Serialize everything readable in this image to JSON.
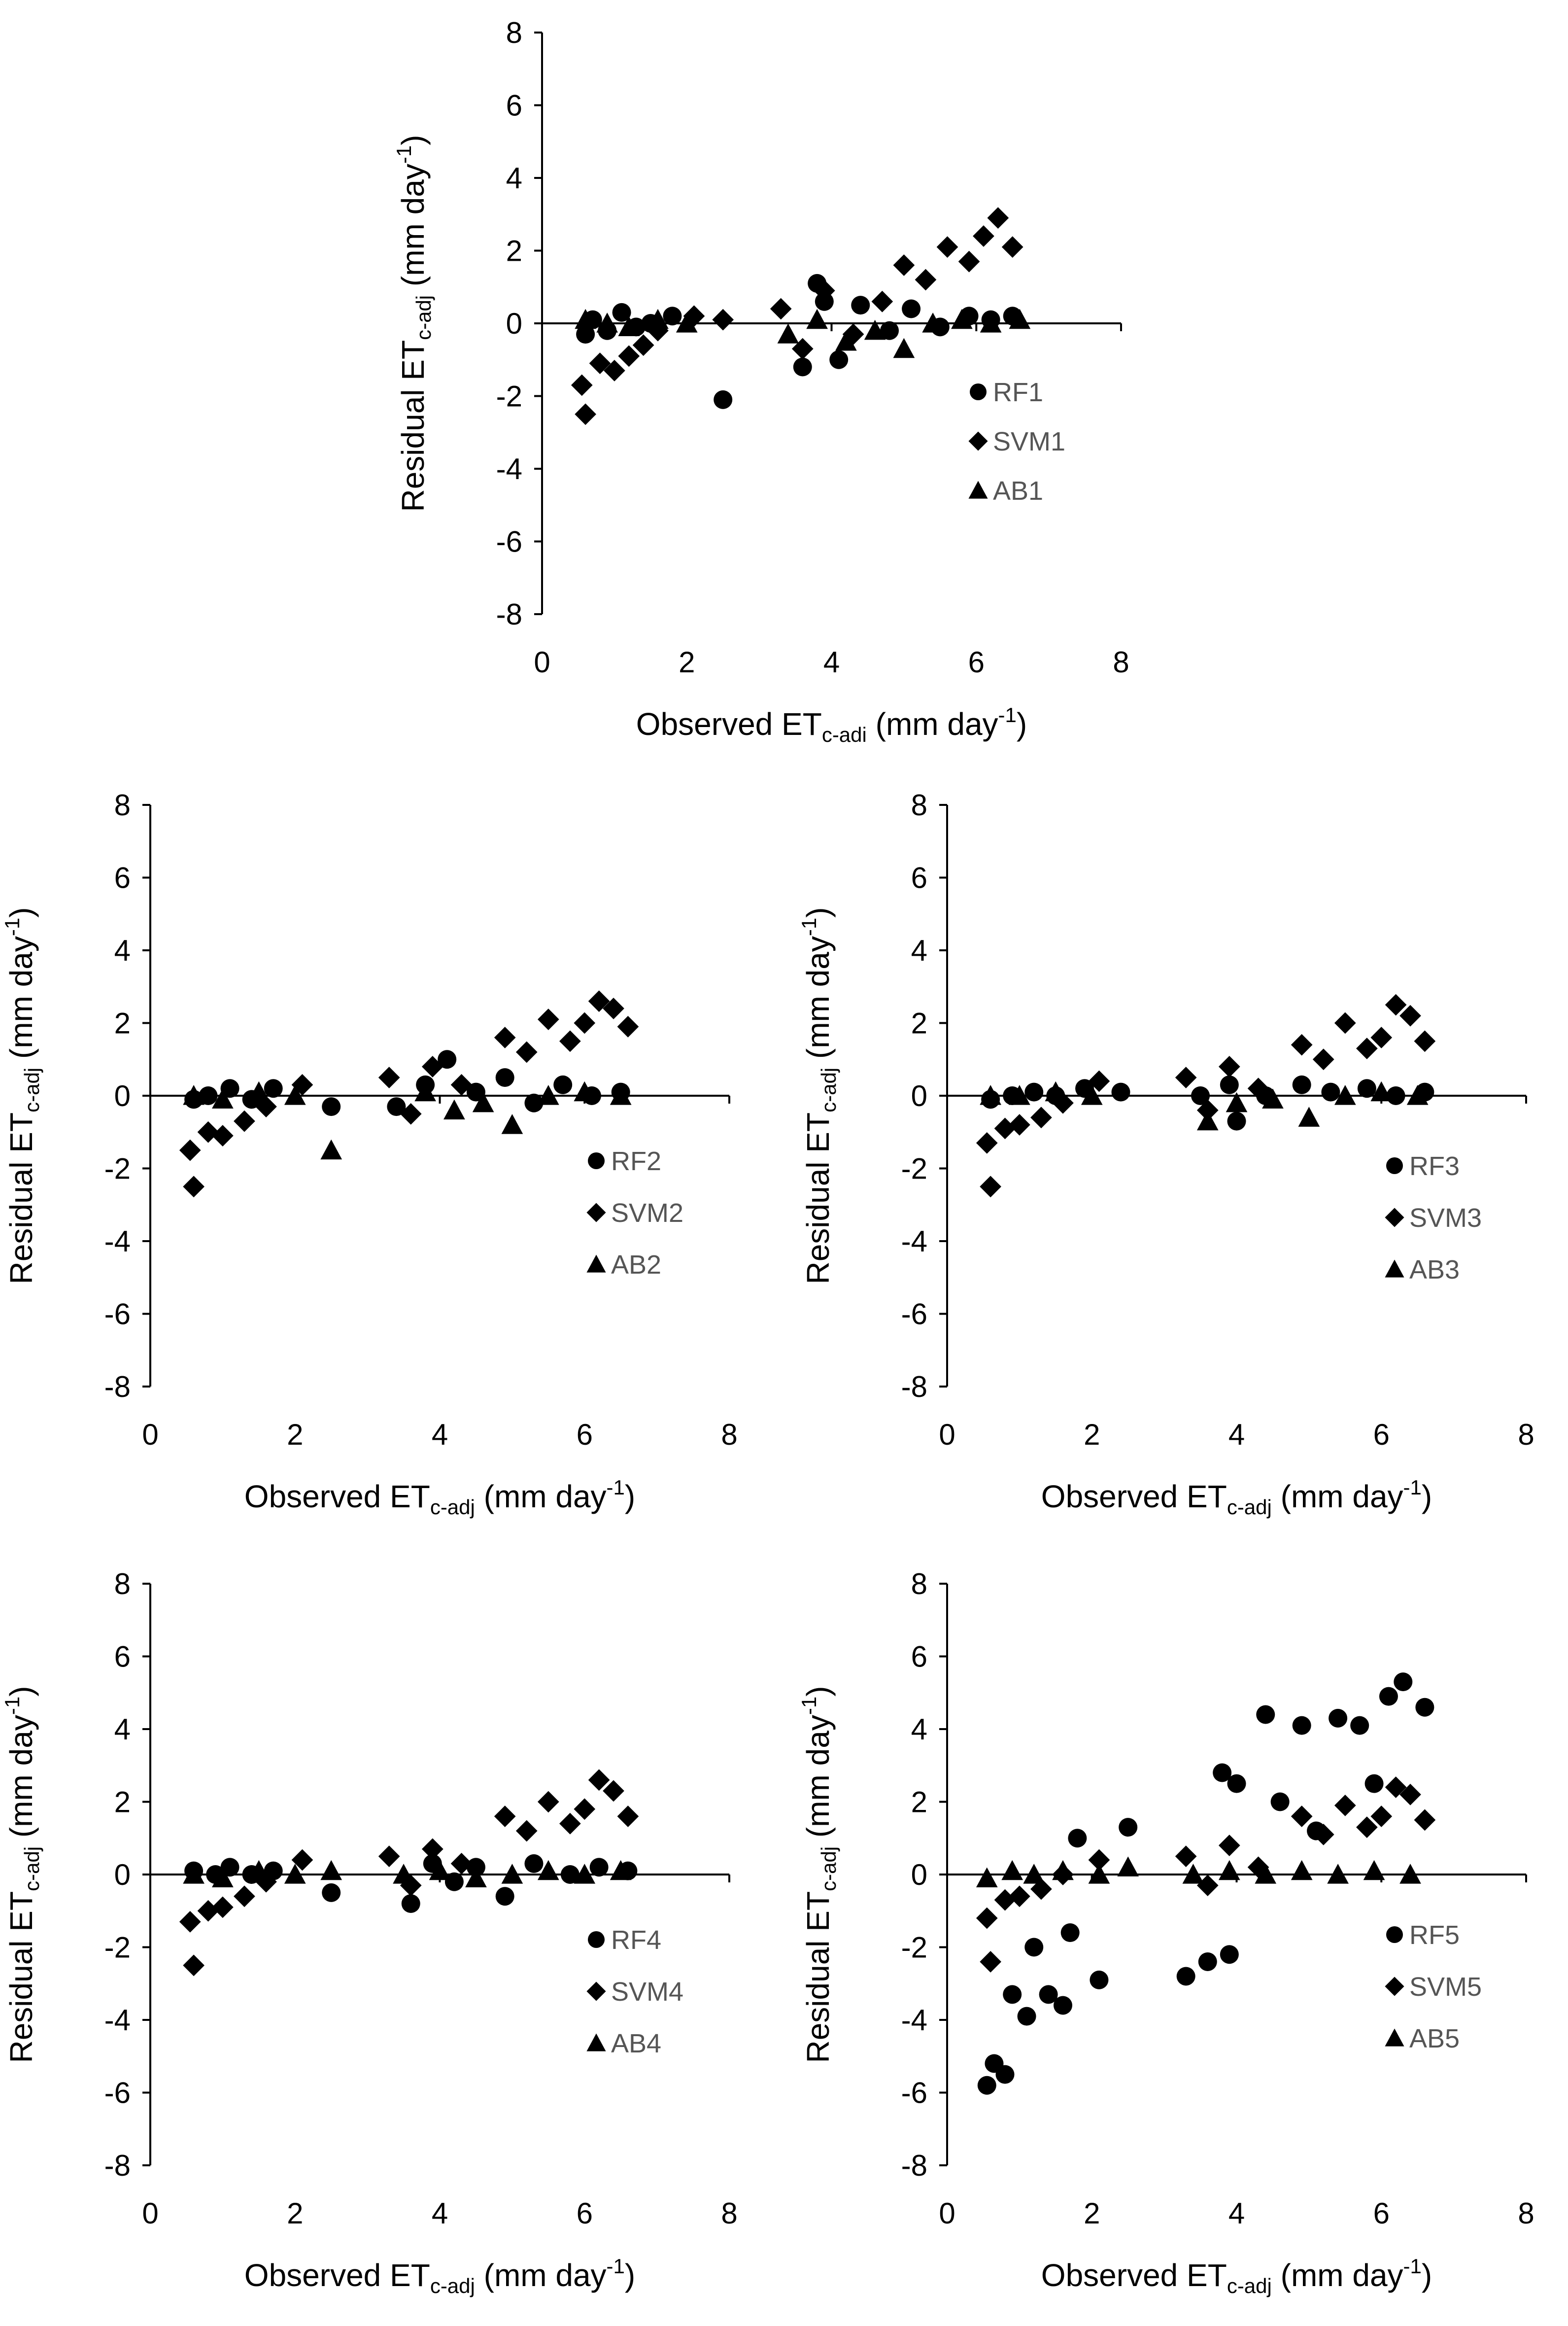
{
  "chart_data": [
    {
      "type": "scatter",
      "panel": "1",
      "title": "",
      "xlabel": {
        "prefix": "Observed ET",
        "sub": "c-adi",
        "suffix": " (mm day",
        "sup": "-1",
        "end": ")"
      },
      "ylabel": {
        "prefix": "Residual ET",
        "sub": "c-adj",
        "suffix": " (mm day",
        "sup": "-1",
        "end": ")"
      },
      "xlim": [
        0,
        8
      ],
      "ylim": [
        -8,
        8
      ],
      "xticks": [
        "0",
        "2",
        "4",
        "6",
        "8"
      ],
      "yticks": [
        "8",
        "6",
        "4",
        "2",
        "0",
        "-2",
        "-4",
        "-6",
        "-8"
      ],
      "legend": {
        "placement": "lower-right",
        "entries": [
          "RF1",
          "SVM1",
          "AB1"
        ]
      },
      "series": [
        {
          "name": "RF1",
          "marker": "circle",
          "x": [
            0.6,
            0.7,
            0.9,
            1.1,
            1.3,
            1.5,
            1.8,
            2.5,
            3.6,
            3.8,
            3.9,
            4.1,
            4.4,
            4.8,
            5.1,
            5.5,
            5.9,
            6.2,
            6.5
          ],
          "y": [
            -0.3,
            0.1,
            -0.2,
            0.3,
            -0.1,
            0.0,
            0.2,
            -2.1,
            -1.2,
            1.1,
            0.6,
            -1.0,
            0.5,
            -0.2,
            0.4,
            -0.1,
            0.2,
            0.1,
            0.2
          ]
        },
        {
          "name": "SVM1",
          "marker": "diamond",
          "x": [
            0.55,
            0.6,
            0.8,
            1.0,
            1.2,
            1.4,
            1.6,
            2.1,
            2.5,
            3.3,
            3.6,
            3.9,
            4.3,
            4.7,
            5.0,
            5.3,
            5.6,
            5.9,
            6.1,
            6.3,
            6.5
          ],
          "y": [
            -1.7,
            -2.5,
            -1.1,
            -1.3,
            -0.9,
            -0.6,
            -0.2,
            0.2,
            0.1,
            0.4,
            -0.7,
            0.9,
            -0.3,
            0.6,
            1.6,
            1.2,
            2.1,
            1.7,
            2.4,
            2.9,
            2.1
          ]
        },
        {
          "name": "AB1",
          "marker": "triangle",
          "x": [
            0.6,
            0.9,
            1.2,
            1.6,
            2.0,
            3.4,
            3.8,
            4.2,
            4.6,
            5.0,
            5.4,
            5.8,
            6.2,
            6.6
          ],
          "y": [
            0.1,
            0.0,
            -0.1,
            0.1,
            0.0,
            -0.3,
            0.1,
            -0.5,
            -0.2,
            -0.7,
            0.0,
            0.1,
            0.0,
            0.1
          ]
        }
      ]
    },
    {
      "type": "scatter",
      "panel": "2",
      "title": "",
      "xlabel": {
        "prefix": "Observed ET",
        "sub": "c-adj",
        "suffix": " (mm day",
        "sup": "-1",
        "end": ")"
      },
      "ylabel": {
        "prefix": "Residual ET",
        "sub": "c-adj",
        "suffix": " (mm day",
        "sup": "-1",
        "end": ")"
      },
      "xlim": [
        0,
        8
      ],
      "ylim": [
        -8,
        8
      ],
      "xticks": [
        "0",
        "2",
        "4",
        "6",
        "8"
      ],
      "yticks": [
        "8",
        "6",
        "4",
        "2",
        "0",
        "-2",
        "-4",
        "-6",
        "-8"
      ],
      "legend": {
        "placement": "lower-right",
        "entries": [
          "RF2",
          "SVM2",
          "AB2"
        ]
      },
      "series": [
        {
          "name": "RF2",
          "marker": "circle",
          "x": [
            0.6,
            0.8,
            1.1,
            1.4,
            1.7,
            2.5,
            3.4,
            3.8,
            4.1,
            4.5,
            4.9,
            5.3,
            5.7,
            6.1,
            6.5
          ],
          "y": [
            -0.1,
            0.0,
            0.2,
            -0.1,
            0.2,
            -0.3,
            -0.3,
            0.3,
            1.0,
            0.1,
            0.5,
            -0.2,
            0.3,
            0.0,
            0.1
          ]
        },
        {
          "name": "SVM2",
          "marker": "diamond",
          "x": [
            0.55,
            0.6,
            0.8,
            1.0,
            1.3,
            1.6,
            2.1,
            3.3,
            3.6,
            3.9,
            4.3,
            4.9,
            5.2,
            5.5,
            5.8,
            6.0,
            6.2,
            6.4,
            6.6
          ],
          "y": [
            -1.5,
            -2.5,
            -1.0,
            -1.1,
            -0.7,
            -0.3,
            0.3,
            0.5,
            -0.5,
            0.8,
            0.3,
            1.6,
            1.2,
            2.1,
            1.5,
            2.0,
            2.6,
            2.4,
            1.9
          ]
        },
        {
          "name": "AB2",
          "marker": "triangle",
          "x": [
            0.6,
            1.0,
            1.5,
            2.0,
            2.5,
            3.8,
            4.2,
            4.6,
            5.0,
            5.5,
            6.0,
            6.5
          ],
          "y": [
            0.0,
            -0.1,
            0.1,
            0.0,
            -1.5,
            0.1,
            -0.4,
            -0.2,
            -0.8,
            0.0,
            0.1,
            0.0
          ]
        }
      ]
    },
    {
      "type": "scatter",
      "panel": "3",
      "title": "",
      "xlabel": {
        "prefix": "Observed ET",
        "sub": "c-adj",
        "suffix": " (mm day",
        "sup": "-1",
        "end": ")"
      },
      "ylabel": {
        "prefix": "Residual ET",
        "sub": "c-adj",
        "suffix": " (mm day",
        "sup": "-1",
        "end": ")"
      },
      "xlim": [
        0,
        8
      ],
      "ylim": [
        -8,
        8
      ],
      "xticks": [
        "0",
        "2",
        "4",
        "6",
        "8"
      ],
      "yticks": [
        "8",
        "6",
        "4",
        "2",
        "0",
        "-2",
        "-4",
        "-6",
        "-8"
      ],
      "legend": {
        "placement": "lower-right",
        "entries": [
          "RF3",
          "SVM3",
          "AB3"
        ]
      },
      "series": [
        {
          "name": "RF3",
          "marker": "circle",
          "x": [
            0.6,
            0.9,
            1.2,
            1.5,
            1.9,
            2.4,
            3.5,
            3.9,
            4.0,
            4.4,
            4.9,
            5.3,
            5.8,
            6.2,
            6.6
          ],
          "y": [
            -0.1,
            0.0,
            0.1,
            0.0,
            0.2,
            0.1,
            0.0,
            0.3,
            -0.7,
            0.0,
            0.3,
            0.1,
            0.2,
            0.0,
            0.1
          ]
        },
        {
          "name": "SVM3",
          "marker": "diamond",
          "x": [
            0.55,
            0.6,
            0.8,
            1.0,
            1.3,
            1.6,
            2.1,
            3.3,
            3.6,
            3.9,
            4.3,
            4.9,
            5.2,
            5.5,
            5.8,
            6.0,
            6.2,
            6.4,
            6.6
          ],
          "y": [
            -1.3,
            -2.5,
            -0.9,
            -0.8,
            -0.6,
            -0.2,
            0.4,
            0.5,
            -0.4,
            0.8,
            0.2,
            1.4,
            1.0,
            2.0,
            1.3,
            1.6,
            2.5,
            2.2,
            1.5
          ]
        },
        {
          "name": "AB3",
          "marker": "triangle",
          "x": [
            0.6,
            1.0,
            1.5,
            2.0,
            3.6,
            4.0,
            4.5,
            5.0,
            5.5,
            6.0,
            6.5
          ],
          "y": [
            0.0,
            0.0,
            0.1,
            0.0,
            -0.7,
            -0.2,
            -0.1,
            -0.6,
            0.0,
            0.1,
            0.0
          ]
        }
      ]
    },
    {
      "type": "scatter",
      "panel": "4",
      "title": "",
      "xlabel": {
        "prefix": "Observed ET",
        "sub": "c-adj",
        "suffix": " (mm day",
        "sup": "-1",
        "end": ")"
      },
      "ylabel": {
        "prefix": "Residual ET",
        "sub": "c-adj",
        "suffix": " (mm day",
        "sup": "-1",
        "end": ")"
      },
      "xlim": [
        0,
        8
      ],
      "ylim": [
        -8,
        8
      ],
      "xticks": [
        "0",
        "2",
        "4",
        "6",
        "8"
      ],
      "yticks": [
        "8",
        "6",
        "4",
        "2",
        "0",
        "-2",
        "-4",
        "-6",
        "-8"
      ],
      "legend": {
        "placement": "lower-right",
        "entries": [
          "RF4",
          "SVM4",
          "AB4"
        ]
      },
      "series": [
        {
          "name": "RF4",
          "marker": "circle",
          "x": [
            0.6,
            0.9,
            1.1,
            1.4,
            1.7,
            2.5,
            3.6,
            3.9,
            4.2,
            4.5,
            4.9,
            5.3,
            5.8,
            6.2,
            6.6
          ],
          "y": [
            0.1,
            0.0,
            0.2,
            0.0,
            0.1,
            -0.5,
            -0.8,
            0.3,
            -0.2,
            0.2,
            -0.6,
            0.3,
            0.0,
            0.2,
            0.1
          ]
        },
        {
          "name": "SVM4",
          "marker": "diamond",
          "x": [
            0.55,
            0.6,
            0.8,
            1.0,
            1.3,
            1.6,
            2.1,
            3.3,
            3.6,
            3.9,
            4.3,
            4.9,
            5.2,
            5.5,
            5.8,
            6.0,
            6.2,
            6.4,
            6.6
          ],
          "y": [
            -1.3,
            -2.5,
            -1.0,
            -0.9,
            -0.6,
            -0.2,
            0.4,
            0.5,
            -0.3,
            0.7,
            0.3,
            1.6,
            1.2,
            2.0,
            1.4,
            1.8,
            2.6,
            2.3,
            1.6
          ]
        },
        {
          "name": "AB4",
          "marker": "triangle",
          "x": [
            0.6,
            1.0,
            1.5,
            2.0,
            2.5,
            3.5,
            4.0,
            4.5,
            5.0,
            5.5,
            6.0,
            6.5
          ],
          "y": [
            0.0,
            -0.1,
            0.1,
            0.0,
            0.1,
            0.0,
            0.1,
            -0.1,
            0.0,
            0.1,
            0.0,
            0.1
          ]
        }
      ]
    },
    {
      "type": "scatter",
      "panel": "5",
      "title": "",
      "xlabel": {
        "prefix": "Observed ET",
        "sub": "c-adj",
        "suffix": " (mm day",
        "sup": "-1",
        "end": ")"
      },
      "ylabel": {
        "prefix": "Residual ET",
        "sub": "c-adj",
        "suffix": " (mm day",
        "sup": "-1",
        "end": ")"
      },
      "xlim": [
        0,
        8
      ],
      "ylim": [
        -8,
        8
      ],
      "xticks": [
        "0",
        "2",
        "4",
        "6",
        "8"
      ],
      "yticks": [
        "8",
        "6",
        "4",
        "2",
        "0",
        "-2",
        "-4",
        "-6",
        "-8"
      ],
      "legend": {
        "placement": "lower-right",
        "entries": [
          "RF5",
          "SVM5",
          "AB5"
        ]
      },
      "series": [
        {
          "name": "RF5",
          "marker": "circle",
          "x": [
            0.55,
            0.65,
            0.8,
            0.9,
            1.1,
            1.2,
            1.4,
            1.6,
            1.7,
            1.8,
            2.1,
            2.5,
            3.3,
            3.6,
            3.8,
            3.9,
            4.0,
            4.4,
            4.6,
            4.9,
            5.1,
            5.4,
            5.7,
            5.9,
            6.1,
            6.3,
            6.6
          ],
          "y": [
            -5.8,
            -5.2,
            -5.5,
            -3.3,
            -3.9,
            -2.0,
            -3.3,
            -3.6,
            -1.6,
            1.0,
            -2.9,
            1.3,
            -2.8,
            -2.4,
            2.8,
            -2.2,
            2.5,
            4.4,
            2.0,
            4.1,
            1.2,
            4.3,
            4.1,
            2.5,
            4.9,
            5.3,
            4.6
          ]
        },
        {
          "name": "SVM5",
          "marker": "diamond",
          "x": [
            0.55,
            0.6,
            0.8,
            1.0,
            1.3,
            1.6,
            2.1,
            3.3,
            3.6,
            3.9,
            4.3,
            4.9,
            5.2,
            5.5,
            5.8,
            6.0,
            6.2,
            6.4,
            6.6
          ],
          "y": [
            -1.2,
            -2.4,
            -0.7,
            -0.6,
            -0.4,
            0.0,
            0.4,
            0.5,
            -0.3,
            0.8,
            0.2,
            1.6,
            1.1,
            1.9,
            1.3,
            1.6,
            2.4,
            2.2,
            1.5
          ]
        },
        {
          "name": "AB5",
          "marker": "triangle",
          "x": [
            0.55,
            0.9,
            1.2,
            1.6,
            2.1,
            2.5,
            3.4,
            3.9,
            4.4,
            4.9,
            5.4,
            5.9,
            6.4
          ],
          "y": [
            -0.1,
            0.1,
            0.0,
            0.1,
            0.0,
            0.2,
            0.0,
            0.1,
            0.0,
            0.1,
            0.0,
            0.1,
            0.0
          ]
        }
      ]
    }
  ]
}
